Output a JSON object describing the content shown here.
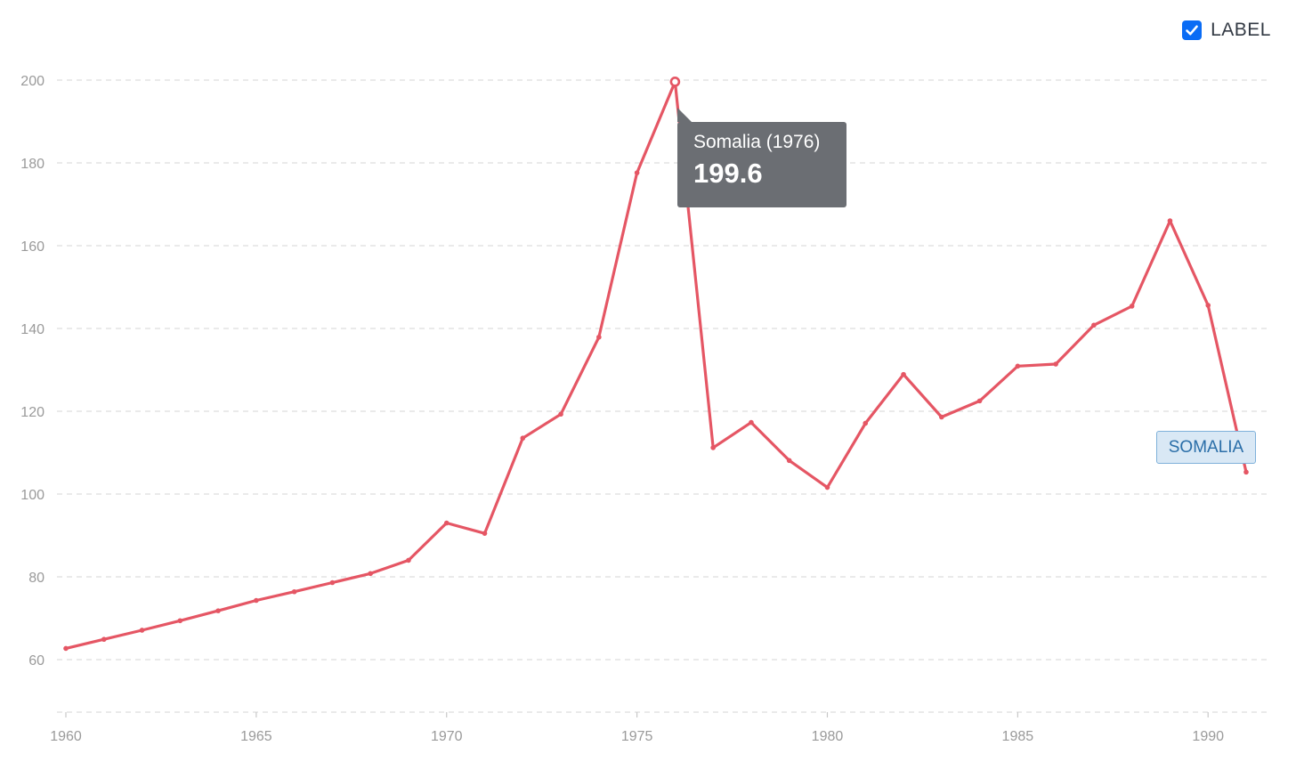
{
  "controls": {
    "label_toggle": {
      "text": "LABEL",
      "checked": true,
      "icon": "checkmark-icon",
      "color": "#0a6cf5"
    }
  },
  "tooltip": {
    "title": "Somalia (1976)",
    "value": "199.6"
  },
  "series_label": "SOMALIA",
  "colors": {
    "line": "#e55664",
    "grid": "#dedede",
    "tick_text": "#9a9a9a",
    "tooltip_bg": "#6b6e73",
    "series_label_bg": "#d9e8f5",
    "series_label_text": "#2a6ea8"
  },
  "chart_data": {
    "type": "line",
    "title": "",
    "xlabel": "",
    "ylabel": "",
    "xlim": [
      1960,
      1991
    ],
    "ylim": [
      50,
      210
    ],
    "x_ticks": [
      1960,
      1965,
      1970,
      1975,
      1980,
      1985,
      1990
    ],
    "y_ticks": [
      60,
      80,
      100,
      120,
      140,
      160,
      180,
      200
    ],
    "grid": "horizontal dashed",
    "highlighted_point": {
      "x": 1976,
      "y": 199.6
    },
    "series": [
      {
        "name": "Somalia",
        "x": [
          1960,
          1961,
          1962,
          1963,
          1964,
          1965,
          1966,
          1967,
          1968,
          1969,
          1970,
          1971,
          1972,
          1973,
          1974,
          1975,
          1976,
          1977,
          1978,
          1979,
          1980,
          1981,
          1982,
          1983,
          1984,
          1985,
          1986,
          1987,
          1988,
          1989,
          1990,
          1991
        ],
        "y": [
          62.7,
          64.9,
          67.1,
          69.4,
          71.8,
          74.3,
          76.4,
          78.6,
          80.8,
          84.0,
          93.0,
          90.5,
          113.5,
          119.3,
          137.9,
          177.6,
          199.6,
          111.2,
          117.3,
          108.1,
          101.6,
          117.1,
          128.9,
          118.6,
          122.5,
          130.9,
          131.4,
          140.8,
          145.4,
          166.0,
          145.6,
          105.3
        ]
      }
    ]
  }
}
